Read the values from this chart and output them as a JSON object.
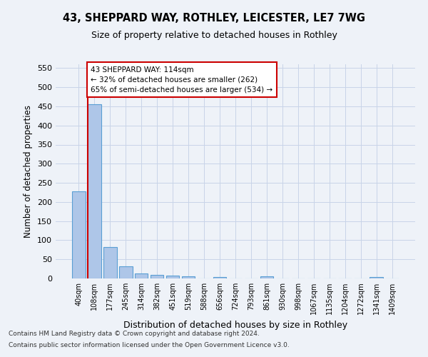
{
  "title": "43, SHEPPARD WAY, ROTHLEY, LEICESTER, LE7 7WG",
  "subtitle": "Size of property relative to detached houses in Rothley",
  "xlabel": "Distribution of detached houses by size in Rothley",
  "ylabel": "Number of detached properties",
  "bins": [
    "40sqm",
    "108sqm",
    "177sqm",
    "245sqm",
    "314sqm",
    "382sqm",
    "451sqm",
    "519sqm",
    "588sqm",
    "656sqm",
    "724sqm",
    "793sqm",
    "861sqm",
    "930sqm",
    "998sqm",
    "1067sqm",
    "1135sqm",
    "1204sqm",
    "1272sqm",
    "1341sqm",
    "1409sqm"
  ],
  "bar_values": [
    228,
    455,
    83,
    32,
    13,
    10,
    7,
    5,
    0,
    4,
    0,
    0,
    5,
    0,
    0,
    0,
    0,
    0,
    0,
    4,
    0
  ],
  "bar_color": "#aec6e8",
  "bar_edge_color": "#5a9fd4",
  "annotation_line1": "43 SHEPPARD WAY: 114sqm",
  "annotation_line2": "← 32% of detached houses are smaller (262)",
  "annotation_line3": "65% of semi-detached houses are larger (534) →",
  "red_line_color": "#cc0000",
  "annotation_box_color": "#ffffff",
  "annotation_box_edge_color": "#cc0000",
  "ylim": [
    0,
    560
  ],
  "yticks": [
    0,
    50,
    100,
    150,
    200,
    250,
    300,
    350,
    400,
    450,
    500,
    550
  ],
  "footer1": "Contains HM Land Registry data © Crown copyright and database right 2024.",
  "footer2": "Contains public sector information licensed under the Open Government Licence v3.0.",
  "bg_color": "#eef2f8",
  "plot_bg_color": "#eef2f8",
  "grid_color": "#c8d4e8"
}
